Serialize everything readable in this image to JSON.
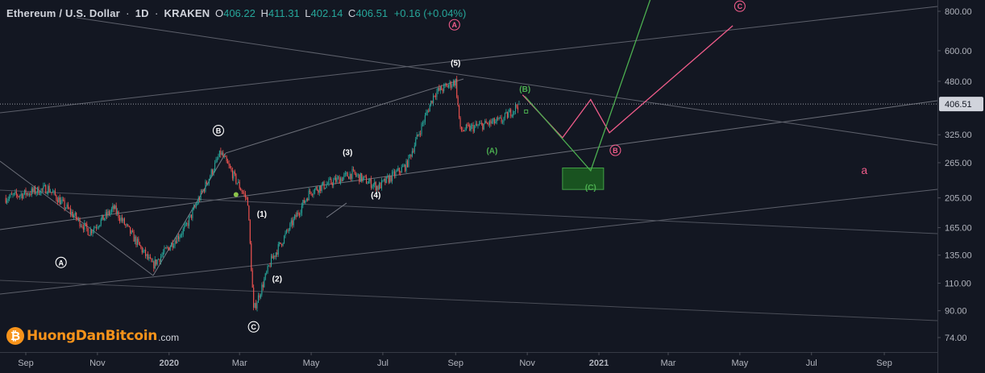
{
  "header": {
    "symbol": "Ethereum / U.S. Dollar",
    "interval": "1D",
    "exchange": "KRAKEN",
    "open_label": "O",
    "open": "406.22",
    "high_label": "H",
    "high": "411.31",
    "low_label": "L",
    "low": "402.14",
    "close_label": "C",
    "close": "406.51",
    "change": "+0.16 (+0.04%)"
  },
  "logo": {
    "name": "HuongDanBitcoin",
    "domain": ".com",
    "icon": "bitcoin-icon"
  },
  "colors": {
    "background": "#131722",
    "up": "#26a69a",
    "down": "#ef5350",
    "axis_text": "#b2b5be",
    "wave_white": "#ffffff",
    "wave_green": "#4caf50",
    "wave_pink": "#ef5c8a",
    "price_tag": "#d1d4dc"
  },
  "chart_data": {
    "type": "candlestick",
    "y_scale": "log",
    "y_ticks": [
      "800.00",
      "600.00",
      "480.00",
      "406.51",
      "325.00",
      "265.00",
      "205.00",
      "165.00",
      "135.00",
      "110.00",
      "90.00",
      "74.00"
    ],
    "x_ticks": [
      "Sep",
      "Nov",
      "2020",
      "Mar",
      "May",
      "Jul",
      "Sep",
      "Nov",
      "2021",
      "Mar",
      "May",
      "Jul",
      "Sep"
    ],
    "last_price": "406.51",
    "price_anchors": [
      {
        "date": "2019-08-15",
        "price": 205
      },
      {
        "date": "2019-09-20",
        "price": 220
      },
      {
        "date": "2019-10-25",
        "price": 160
      },
      {
        "date": "2019-11-15",
        "price": 190
      },
      {
        "date": "2019-12-18",
        "price": 125
      },
      {
        "date": "2020-01-15",
        "price": 165
      },
      {
        "date": "2020-02-14",
        "price": 285
      },
      {
        "date": "2020-03-08",
        "price": 200
      },
      {
        "date": "2020-03-13",
        "price": 90
      },
      {
        "date": "2020-03-28",
        "price": 130
      },
      {
        "date": "2020-04-30",
        "price": 215
      },
      {
        "date": "2020-06-05",
        "price": 245
      },
      {
        "date": "2020-06-27",
        "price": 222
      },
      {
        "date": "2020-07-21",
        "price": 260
      },
      {
        "date": "2020-08-14",
        "price": 440
      },
      {
        "date": "2020-09-01",
        "price": 480
      },
      {
        "date": "2020-09-05",
        "price": 335
      },
      {
        "date": "2020-09-25",
        "price": 350
      },
      {
        "date": "2020-10-10",
        "price": 360
      },
      {
        "date": "2020-10-25",
        "price": 406.51
      }
    ],
    "wave_labels": [
      {
        "text": "A",
        "style": "circle-white",
        "date": "2019-10-01",
        "price": 128
      },
      {
        "text": "B",
        "style": "circle-white",
        "date": "2020-02-12",
        "price": 335
      },
      {
        "text": "C",
        "style": "circle-white",
        "date": "2020-03-13",
        "price": 80
      },
      {
        "text": "(1)",
        "style": "white",
        "date": "2020-03-20",
        "price": 183
      },
      {
        "text": "(2)",
        "style": "white",
        "date": "2020-04-02",
        "price": 114
      },
      {
        "text": "(3)",
        "style": "white",
        "date": "2020-06-01",
        "price": 287
      },
      {
        "text": "(4)",
        "style": "white",
        "date": "2020-06-25",
        "price": 210
      },
      {
        "text": "(5)",
        "style": "white",
        "date": "2020-09-01",
        "price": 550
      },
      {
        "text": "A",
        "style": "circle-pink",
        "date": "2020-08-31",
        "price": 725
      },
      {
        "text": "(A)",
        "style": "green",
        "date": "2020-10-02",
        "price": 290
      },
      {
        "text": "(B)",
        "style": "green",
        "date": "2020-10-30",
        "price": 455
      },
      {
        "text": "(C)",
        "style": "green",
        "date": "2020-12-25",
        "price": 222
      },
      {
        "text": "B",
        "style": "circle-pink",
        "date": "2021-01-15",
        "price": 290
      },
      {
        "text": "C",
        "style": "circle-pink",
        "date": "2021-05-01",
        "price": 830
      },
      {
        "text": "a",
        "style": "pink",
        "date": "2021-08-15",
        "price": 250
      }
    ],
    "projections": [
      {
        "name": "pink",
        "points": [
          [
            "2020-10-28",
            435
          ],
          [
            "2020-12-01",
            318
          ],
          [
            "2020-12-25",
            420
          ],
          [
            "2021-01-10",
            330
          ],
          [
            "2021-04-25",
            720
          ]
        ]
      },
      {
        "name": "green",
        "points": [
          [
            "2020-10-30",
            430
          ],
          [
            "2020-12-25",
            250
          ],
          [
            "2021-02-15",
            900
          ]
        ]
      }
    ],
    "target_zone": {
      "start": "2020-12-01",
      "end": "2021-01-05",
      "low": 218,
      "high": 255
    }
  }
}
